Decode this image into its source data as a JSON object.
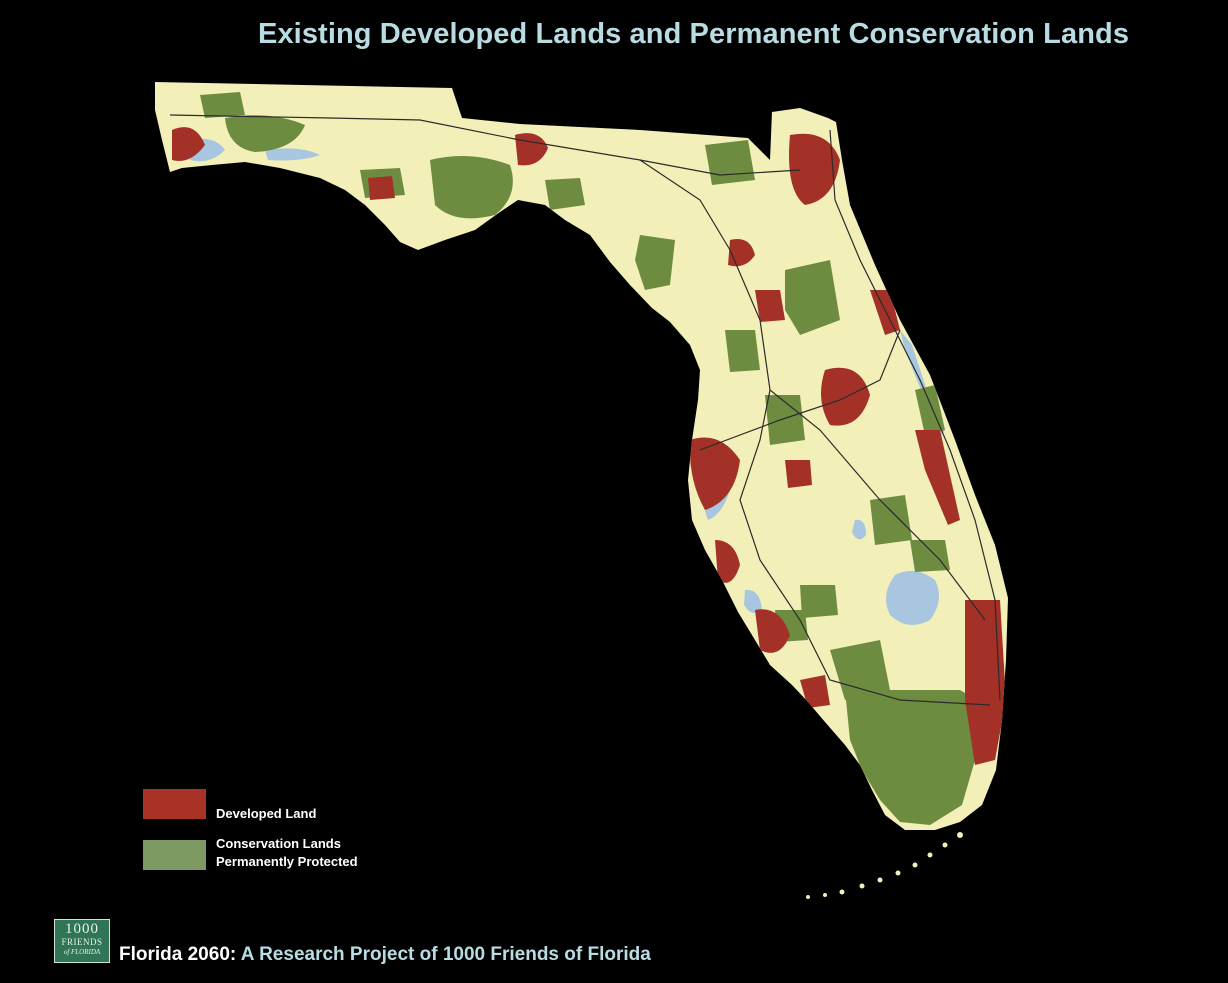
{
  "title": "Existing Developed Lands and Permanent Conservation Lands",
  "colors": {
    "background": "#000000",
    "title": "#b9dce2",
    "land": "#f2efb8",
    "developed": "#a33128",
    "conservation": "#6d8c3f",
    "water": "#a8c6df",
    "legend_developed": "#a83226",
    "legend_conservation": "#7d9a63",
    "logo": "#2f7556"
  },
  "legend": {
    "items": [
      {
        "label": "Developed Land",
        "color": "#a83226"
      },
      {
        "label": "Conservation Lands Permanently Protected",
        "line1": "Conservation Lands",
        "line2": "Permanently Protected",
        "color": "#7d9a63"
      }
    ]
  },
  "logo": {
    "line1": "1000",
    "line2": "FRIENDS",
    "line3": "of FLORIDA"
  },
  "footer": {
    "lead": "Florida 2060:",
    "rest": " A Research Project of 1000 Friends of Florida"
  }
}
